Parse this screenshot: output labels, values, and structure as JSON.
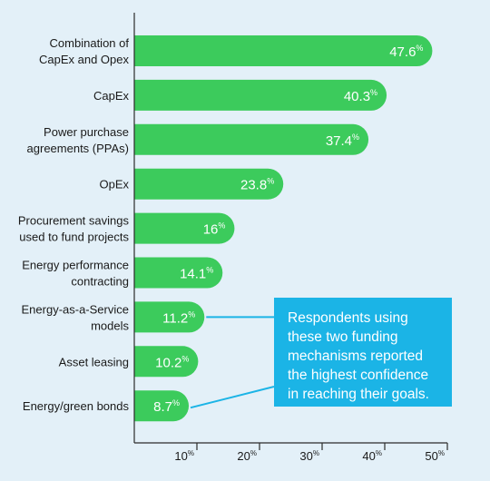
{
  "chart_data": {
    "type": "bar",
    "orientation": "horizontal",
    "categories": [
      [
        "Combination of",
        "CapEx and Opex"
      ],
      [
        "CapEx"
      ],
      [
        "Power purchase",
        "agreements (PPAs)"
      ],
      [
        "OpEx"
      ],
      [
        "Procurement savings",
        "used to fund projects"
      ],
      [
        "Energy performance",
        "contracting"
      ],
      [
        "Energy-as-a-Service",
        "models"
      ],
      [
        "Asset leasing"
      ],
      [
        "Energy/green bonds"
      ]
    ],
    "values": [
      47.6,
      40.3,
      37.4,
      23.8,
      16,
      14.1,
      11.2,
      10.2,
      8.7
    ],
    "value_labels": [
      "47.6",
      "40.3",
      "37.4",
      "23.8",
      "16",
      "14.1",
      "11.2",
      "10.2",
      "8.7"
    ],
    "value_unit": "%",
    "xlim": [
      0,
      50
    ],
    "x_ticks": [
      {
        "value": 10,
        "label": "10",
        "unit": "%"
      },
      {
        "value": 20,
        "label": "20",
        "unit": "%"
      },
      {
        "value": 30,
        "label": "30",
        "unit": "%"
      },
      {
        "value": 40,
        "label": "40",
        "unit": "%"
      },
      {
        "value": 50,
        "label": "50",
        "unit": "%"
      }
    ],
    "grid": false,
    "colors": {
      "bar": "#3ccb5c",
      "background": "#e3f0f8",
      "axis": "#2b2b2b",
      "text": "#1a1a1a",
      "callout": "#1bb4e6"
    },
    "annotation": {
      "text_lines": [
        "Respondents using",
        "these two funding",
        "mechanisms reported",
        "the highest confidence",
        "in reaching their goals."
      ],
      "points_to": [
        "Energy-as-a-Service models",
        "Energy/green bonds"
      ]
    }
  }
}
